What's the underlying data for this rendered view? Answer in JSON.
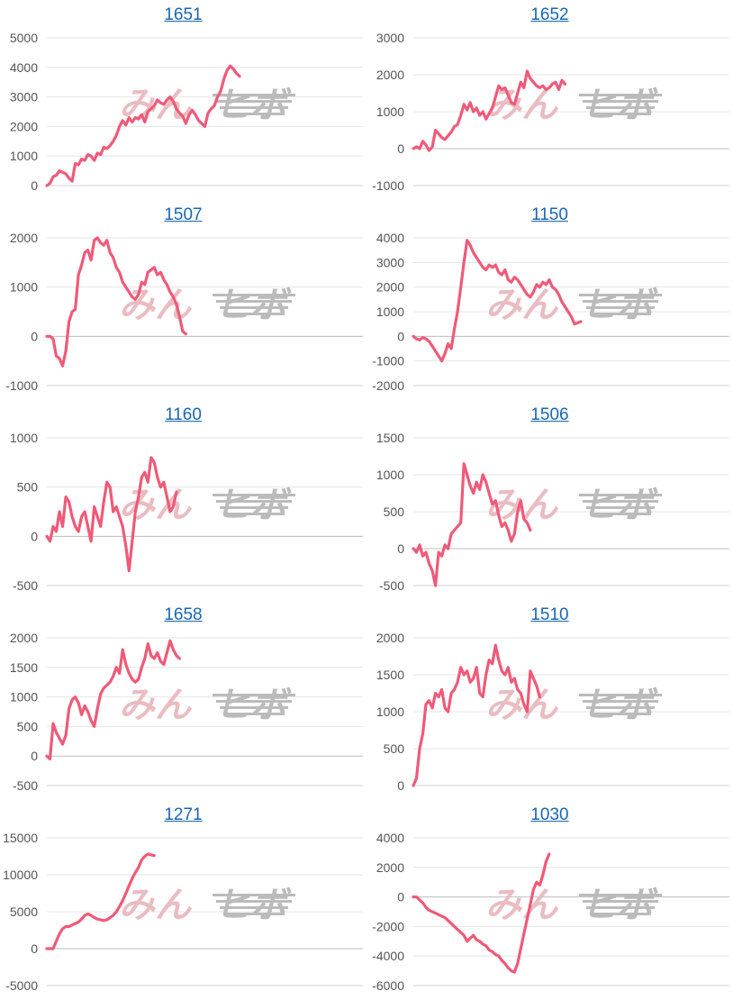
{
  "style": {
    "line_color": "#ef5a78",
    "grid_color": "#e6e6e6",
    "zero_color": "#bdbdbd",
    "title_color": "#1a66b3"
  },
  "watermark": {
    "left_text": "みん",
    "right_text": "ヒボ",
    "left_color": "#e9b9bf",
    "right_color": "#b8b8b8"
  },
  "chart_data": [
    {
      "type": "line",
      "title": "1651",
      "ylim": [
        0,
        5000
      ],
      "yticks": [
        0,
        1000,
        2000,
        3000,
        4000,
        5000
      ],
      "x_max": 100,
      "series": [
        {
          "values": [
            0,
            80,
            300,
            350,
            500,
            450,
            400,
            250,
            150,
            750,
            700,
            900,
            850,
            1050,
            1000,
            850,
            1100,
            1050,
            1300,
            1250,
            1350,
            1500,
            1700,
            2000,
            2200,
            2050,
            2300,
            2150,
            2300,
            2250,
            2400,
            2150,
            2500,
            2600,
            2700,
            2900,
            2800,
            2750,
            2900,
            3000,
            2850,
            2600,
            2450,
            2350,
            2100,
            2400,
            2550,
            2400,
            2200,
            2100,
            2000,
            2450,
            2600,
            2700,
            3000,
            3200,
            3600,
            3900,
            4050,
            3950,
            3800,
            3700
          ]
        }
      ]
    },
    {
      "type": "line",
      "title": "1652",
      "ylim": [
        -1000,
        3000
      ],
      "yticks": [
        -1000,
        0,
        1000,
        2000,
        3000
      ],
      "x_max": 100,
      "series": [
        {
          "values": [
            0,
            50,
            0,
            200,
            100,
            -50,
            50,
            500,
            400,
            300,
            250,
            350,
            450,
            600,
            650,
            900,
            1200,
            1050,
            1250,
            1000,
            1100,
            900,
            1000,
            800,
            950,
            1100,
            1400,
            1700,
            1600,
            1650,
            1450,
            1250,
            1200,
            1500,
            1800,
            1650,
            2100,
            1900,
            1800,
            1700,
            1650,
            1700,
            1600,
            1650,
            1750,
            1800,
            1600,
            1850,
            1750
          ]
        }
      ]
    },
    {
      "type": "line",
      "title": "1507",
      "ylim": [
        -1000,
        2000
      ],
      "yticks": [
        -1000,
        0,
        1000,
        2000
      ],
      "x_max": 100,
      "series": [
        {
          "values": [
            0,
            0,
            -50,
            -400,
            -450,
            -600,
            -300,
            300,
            500,
            550,
            1250,
            1450,
            1700,
            1750,
            1550,
            1950,
            2000,
            1900,
            1850,
            1950,
            1700,
            1600,
            1400,
            1300,
            1100,
            1000,
            900,
            800,
            750,
            850,
            1100,
            1050,
            1300,
            1350,
            1400,
            1250,
            1300,
            1150,
            1050,
            900,
            800,
            650,
            400,
            100,
            50
          ]
        }
      ]
    },
    {
      "type": "line",
      "title": "1150",
      "ylim": [
        -2000,
        4000
      ],
      "yticks": [
        -2000,
        -1000,
        0,
        1000,
        2000,
        3000,
        4000
      ],
      "x_max": 100,
      "series": [
        {
          "values": [
            0,
            -100,
            -150,
            -50,
            -100,
            -200,
            -400,
            -600,
            -800,
            -1000,
            -700,
            -300,
            -500,
            300,
            1000,
            2000,
            3000,
            3900,
            3700,
            3400,
            3200,
            3000,
            2800,
            2700,
            2900,
            2800,
            2900,
            2600,
            2500,
            2700,
            2300,
            2200,
            2400,
            2300,
            2100,
            1900,
            1700,
            1600,
            1800,
            2100,
            2000,
            2200,
            2100,
            2300,
            2000,
            1900,
            1700,
            1400,
            1200,
            1000,
            800,
            500,
            550,
            600
          ]
        }
      ]
    },
    {
      "type": "line",
      "title": "1160",
      "ylim": [
        -500,
        1000
      ],
      "yticks": [
        -500,
        0,
        500,
        1000
      ],
      "x_max": 100,
      "series": [
        {
          "values": [
            0,
            -50,
            100,
            50,
            250,
            100,
            400,
            350,
            200,
            100,
            50,
            200,
            250,
            100,
            -50,
            300,
            200,
            100,
            350,
            550,
            500,
            250,
            300,
            200,
            100,
            -100,
            -350,
            -50,
            250,
            400,
            600,
            650,
            550,
            800,
            750,
            600,
            500,
            550,
            400,
            250,
            300,
            450
          ]
        }
      ]
    },
    {
      "type": "line",
      "title": "1506",
      "ylim": [
        -500,
        1500
      ],
      "yticks": [
        -500,
        0,
        500,
        1000,
        1500
      ],
      "x_max": 100,
      "series": [
        {
          "values": [
            0,
            -50,
            50,
            -100,
            -50,
            -200,
            -300,
            -500,
            -50,
            -100,
            50,
            0,
            200,
            250,
            300,
            350,
            1150,
            1000,
            850,
            750,
            900,
            800,
            1000,
            900,
            750,
            600,
            650,
            450,
            300,
            350,
            250,
            100,
            200,
            500,
            650,
            400,
            350,
            250
          ]
        }
      ]
    },
    {
      "type": "line",
      "title": "1658",
      "ylim": [
        -500,
        2000
      ],
      "yticks": [
        -500,
        0,
        500,
        1000,
        1500,
        2000
      ],
      "x_max": 100,
      "series": [
        {
          "values": [
            0,
            -50,
            550,
            400,
            300,
            200,
            350,
            800,
            950,
            1000,
            900,
            700,
            850,
            750,
            600,
            500,
            800,
            1050,
            1150,
            1200,
            1250,
            1350,
            1500,
            1400,
            1800,
            1550,
            1400,
            1300,
            1250,
            1300,
            1500,
            1650,
            1900,
            1700,
            1650,
            1750,
            1600,
            1550,
            1750,
            1950,
            1800,
            1700,
            1650
          ]
        }
      ]
    },
    {
      "type": "line",
      "title": "1510",
      "ylim": [
        0,
        2000
      ],
      "yticks": [
        0,
        500,
        1000,
        1500,
        2000
      ],
      "x_max": 100,
      "series": [
        {
          "values": [
            0,
            100,
            500,
            700,
            1100,
            1150,
            1050,
            1250,
            1200,
            1300,
            1050,
            1000,
            1250,
            1300,
            1400,
            1600,
            1500,
            1550,
            1400,
            1450,
            1600,
            1250,
            1200,
            1500,
            1700,
            1650,
            1900,
            1700,
            1550,
            1500,
            1600,
            1400,
            1450,
            1300,
            1250,
            1100,
            1000,
            1550,
            1450,
            1350,
            1200
          ]
        }
      ]
    },
    {
      "type": "line",
      "title": "1271",
      "ylim": [
        -5000,
        15000
      ],
      "yticks": [
        -5000,
        0,
        5000,
        10000,
        15000
      ],
      "x_max": 100,
      "series": [
        {
          "values": [
            0,
            0,
            0,
            1000,
            2000,
            2700,
            3000,
            3000,
            3200,
            3400,
            3600,
            4000,
            4500,
            4700,
            4500,
            4200,
            4000,
            3900,
            3800,
            3900,
            4200,
            4500,
            5000,
            5700,
            6500,
            7500,
            8500,
            9500,
            10300,
            11000,
            12000,
            12500,
            12800,
            12700,
            12600
          ]
        }
      ]
    },
    {
      "type": "line",
      "title": "1030",
      "ylim": [
        -6000,
        4000
      ],
      "yticks": [
        -6000,
        -4000,
        -2000,
        0,
        2000,
        4000
      ],
      "x_max": 100,
      "series": [
        {
          "values": [
            0,
            0,
            -200,
            -400,
            -700,
            -900,
            -1000,
            -1100,
            -1200,
            -1300,
            -1400,
            -1600,
            -1800,
            -2000,
            -2200,
            -2400,
            -2600,
            -3000,
            -2800,
            -2600,
            -2900,
            -3000,
            -3200,
            -3300,
            -3600,
            -3700,
            -3900,
            -4000,
            -4300,
            -4500,
            -4800,
            -5000,
            -5100,
            -4500,
            -3500,
            -2500,
            -1500,
            -500,
            500,
            1000,
            800,
            1500,
            2400,
            2900
          ]
        }
      ]
    }
  ]
}
